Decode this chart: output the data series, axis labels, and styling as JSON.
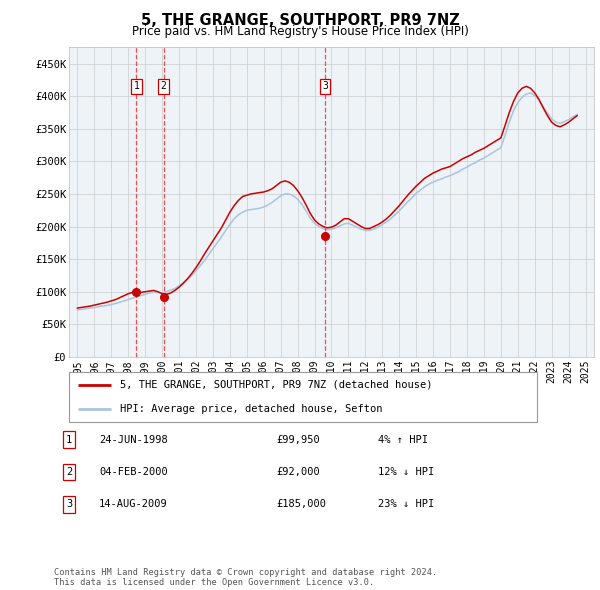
{
  "title": "5, THE GRANGE, SOUTHPORT, PR9 7NZ",
  "subtitle": "Price paid vs. HM Land Registry's House Price Index (HPI)",
  "ylabel_ticks": [
    0,
    50000,
    100000,
    150000,
    200000,
    250000,
    300000,
    350000,
    400000,
    450000
  ],
  "ylabel_labels": [
    "£0",
    "£50K",
    "£100K",
    "£150K",
    "£200K",
    "£250K",
    "£300K",
    "£350K",
    "£400K",
    "£450K"
  ],
  "xlim": [
    1994.5,
    2025.5
  ],
  "ylim": [
    0,
    475000
  ],
  "transactions": [
    {
      "num": 1,
      "date": "24-JUN-1998",
      "price": 99950,
      "year": 1998.48,
      "label": "4% ↑ HPI"
    },
    {
      "num": 2,
      "date": "04-FEB-2000",
      "price": 92000,
      "year": 2000.09,
      "label": "12% ↓ HPI"
    },
    {
      "num": 3,
      "date": "14-AUG-2009",
      "price": 185000,
      "year": 2009.62,
      "label": "23% ↓ HPI"
    }
  ],
  "hpi_line_color": "#aac4dd",
  "price_line_color": "#cc0000",
  "transaction_marker_color": "#cc0000",
  "vline_color": "#ee3333",
  "grid_color": "#cccccc",
  "plot_bg_color": "#eef3f8",
  "legend_line_red": "5, THE GRANGE, SOUTHPORT, PR9 7NZ (detached house)",
  "legend_line_blue": "HPI: Average price, detached house, Sefton",
  "copyright": "Contains HM Land Registry data © Crown copyright and database right 2024.\nThis data is licensed under the Open Government Licence v3.0.",
  "hpi_years": [
    1995,
    1995.25,
    1995.5,
    1995.75,
    1996,
    1996.25,
    1996.5,
    1996.75,
    1997,
    1997.25,
    1997.5,
    1997.75,
    1998,
    1998.25,
    1998.5,
    1998.75,
    1999,
    1999.25,
    1999.5,
    1999.75,
    2000,
    2000.25,
    2000.5,
    2000.75,
    2001,
    2001.25,
    2001.5,
    2001.75,
    2002,
    2002.25,
    2002.5,
    2002.75,
    2003,
    2003.25,
    2003.5,
    2003.75,
    2004,
    2004.25,
    2004.5,
    2004.75,
    2005,
    2005.25,
    2005.5,
    2005.75,
    2006,
    2006.25,
    2006.5,
    2006.75,
    2007,
    2007.25,
    2007.5,
    2007.75,
    2008,
    2008.25,
    2008.5,
    2008.75,
    2009,
    2009.25,
    2009.5,
    2009.75,
    2010,
    2010.25,
    2010.5,
    2010.75,
    2011,
    2011.25,
    2011.5,
    2011.75,
    2012,
    2012.25,
    2012.5,
    2012.75,
    2013,
    2013.25,
    2013.5,
    2013.75,
    2014,
    2014.25,
    2014.5,
    2014.75,
    2015,
    2015.25,
    2015.5,
    2015.75,
    2016,
    2016.25,
    2016.5,
    2016.75,
    2017,
    2017.25,
    2017.5,
    2017.75,
    2018,
    2018.25,
    2018.5,
    2018.75,
    2019,
    2019.25,
    2019.5,
    2019.75,
    2020,
    2020.25,
    2020.5,
    2020.75,
    2021,
    2021.25,
    2021.5,
    2021.75,
    2022,
    2022.25,
    2022.5,
    2022.75,
    2023,
    2023.25,
    2023.5,
    2023.75,
    2024,
    2024.25,
    2024.5
  ],
  "hpi_values": [
    72000,
    73000,
    74000,
    75000,
    76000,
    77000,
    78000,
    79000,
    80500,
    82000,
    84000,
    86000,
    88000,
    90000,
    92000,
    94000,
    96000,
    98000,
    99500,
    99000,
    98500,
    100000,
    102500,
    105000,
    109000,
    114000,
    119000,
    125000,
    132000,
    140000,
    148000,
    157000,
    166000,
    175000,
    184000,
    194000,
    203000,
    212000,
    218000,
    222000,
    225000,
    226000,
    227000,
    228000,
    230000,
    233000,
    237000,
    242000,
    247000,
    250000,
    250000,
    247000,
    242000,
    234000,
    224000,
    213000,
    205000,
    200000,
    197000,
    195000,
    196000,
    198000,
    201000,
    204000,
    205000,
    202000,
    199000,
    196000,
    194000,
    194000,
    196000,
    199000,
    203000,
    207000,
    212000,
    218000,
    224000,
    231000,
    238000,
    244000,
    251000,
    256000,
    261000,
    265000,
    268000,
    271000,
    273000,
    276000,
    278000,
    281000,
    284000,
    288000,
    291000,
    295000,
    298000,
    302000,
    305000,
    309000,
    313000,
    317000,
    321000,
    340000,
    360000,
    378000,
    390000,
    398000,
    403000,
    405000,
    401000,
    394000,
    384000,
    374000,
    365000,
    360000,
    358000,
    361000,
    364000,
    368000,
    372000
  ],
  "price_years": [
    1995,
    1995.25,
    1995.5,
    1995.75,
    1996,
    1996.25,
    1996.5,
    1996.75,
    1997,
    1997.25,
    1997.5,
    1997.75,
    1998,
    1998.25,
    1998.5,
    1998.75,
    1999,
    1999.25,
    1999.5,
    1999.75,
    2000,
    2000.25,
    2000.5,
    2000.75,
    2001,
    2001.25,
    2001.5,
    2001.75,
    2002,
    2002.25,
    2002.5,
    2002.75,
    2003,
    2003.25,
    2003.5,
    2003.75,
    2004,
    2004.25,
    2004.5,
    2004.75,
    2005,
    2005.25,
    2005.5,
    2005.75,
    2006,
    2006.25,
    2006.5,
    2006.75,
    2007,
    2007.25,
    2007.5,
    2007.75,
    2008,
    2008.25,
    2008.5,
    2008.75,
    2009,
    2009.25,
    2009.5,
    2009.75,
    2010,
    2010.25,
    2010.5,
    2010.75,
    2011,
    2011.25,
    2011.5,
    2011.75,
    2012,
    2012.25,
    2012.5,
    2012.75,
    2013,
    2013.25,
    2013.5,
    2013.75,
    2014,
    2014.25,
    2014.5,
    2014.75,
    2015,
    2015.25,
    2015.5,
    2015.75,
    2016,
    2016.25,
    2016.5,
    2016.75,
    2017,
    2017.25,
    2017.5,
    2017.75,
    2018,
    2018.25,
    2018.5,
    2018.75,
    2019,
    2019.25,
    2019.5,
    2019.75,
    2020,
    2020.25,
    2020.5,
    2020.75,
    2021,
    2021.25,
    2021.5,
    2021.75,
    2022,
    2022.25,
    2022.5,
    2022.75,
    2023,
    2023.25,
    2023.5,
    2023.75,
    2024,
    2024.25,
    2024.5
  ],
  "price_values": [
    75000,
    76000,
    77000,
    78000,
    79500,
    81000,
    82500,
    84000,
    86000,
    88000,
    91000,
    94000,
    97000,
    99000,
    100000,
    99000,
    100000,
    101000,
    102000,
    100000,
    97000,
    96000,
    98000,
    102000,
    107000,
    113000,
    120000,
    128000,
    137000,
    147000,
    158000,
    168000,
    178000,
    188000,
    198000,
    210000,
    222000,
    232000,
    240000,
    246000,
    248000,
    250000,
    251000,
    252000,
    253000,
    255000,
    258000,
    263000,
    268000,
    270000,
    268000,
    263000,
    255000,
    245000,
    233000,
    220000,
    210000,
    204000,
    200000,
    198000,
    199000,
    202000,
    207000,
    212000,
    212000,
    208000,
    204000,
    200000,
    197000,
    197000,
    200000,
    203000,
    207000,
    212000,
    218000,
    225000,
    232000,
    240000,
    248000,
    255000,
    262000,
    268000,
    274000,
    278000,
    282000,
    285000,
    288000,
    290000,
    292000,
    296000,
    300000,
    304000,
    307000,
    310000,
    314000,
    317000,
    320000,
    324000,
    328000,
    332000,
    336000,
    355000,
    375000,
    392000,
    405000,
    412000,
    415000,
    412000,
    405000,
    395000,
    382000,
    370000,
    360000,
    355000,
    353000,
    356000,
    360000,
    365000,
    370000
  ]
}
